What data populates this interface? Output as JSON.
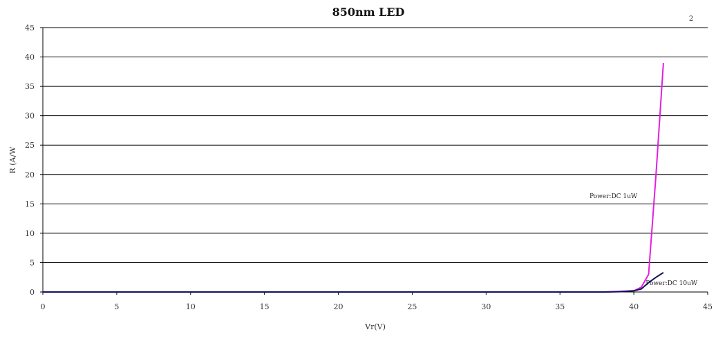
{
  "chart_data": {
    "type": "line",
    "title": "850nm LED",
    "corner_note": "2",
    "xlabel": "Vr(V)",
    "ylabel": "R (A/W",
    "xlim": [
      0,
      45
    ],
    "ylim": [
      0,
      45
    ],
    "x_ticks": [
      0,
      5,
      10,
      15,
      20,
      25,
      30,
      35,
      40,
      45
    ],
    "y_ticks": [
      0,
      5,
      10,
      15,
      20,
      25,
      30,
      35,
      40,
      45
    ],
    "grid": "horizontal",
    "series": [
      {
        "name": "Power:DC 1uW",
        "color": "#e020e0",
        "x": [
          0,
          5,
          10,
          15,
          20,
          25,
          30,
          35,
          38,
          39,
          40,
          40.5,
          41,
          41.5,
          42
        ],
        "y": [
          0,
          0,
          0,
          0,
          0,
          0,
          0,
          0,
          0,
          0.1,
          0.2,
          0.8,
          3,
          20,
          39
        ]
      },
      {
        "name": "Power:DC 10uW",
        "color": "#101060",
        "x": [
          0,
          5,
          10,
          15,
          20,
          25,
          30,
          35,
          38,
          39,
          40,
          40.5,
          41,
          41.5,
          42
        ],
        "y": [
          0,
          0,
          0,
          0,
          0,
          0,
          0,
          0,
          0,
          0.05,
          0.2,
          0.5,
          1.6,
          2.5,
          3.3
        ]
      }
    ],
    "annotations": [
      {
        "text": "Power:DC 1uW",
        "x": 37,
        "y": 16
      },
      {
        "text": "Power:DC 10uW",
        "x": 40.8,
        "y": 1.2
      }
    ]
  }
}
